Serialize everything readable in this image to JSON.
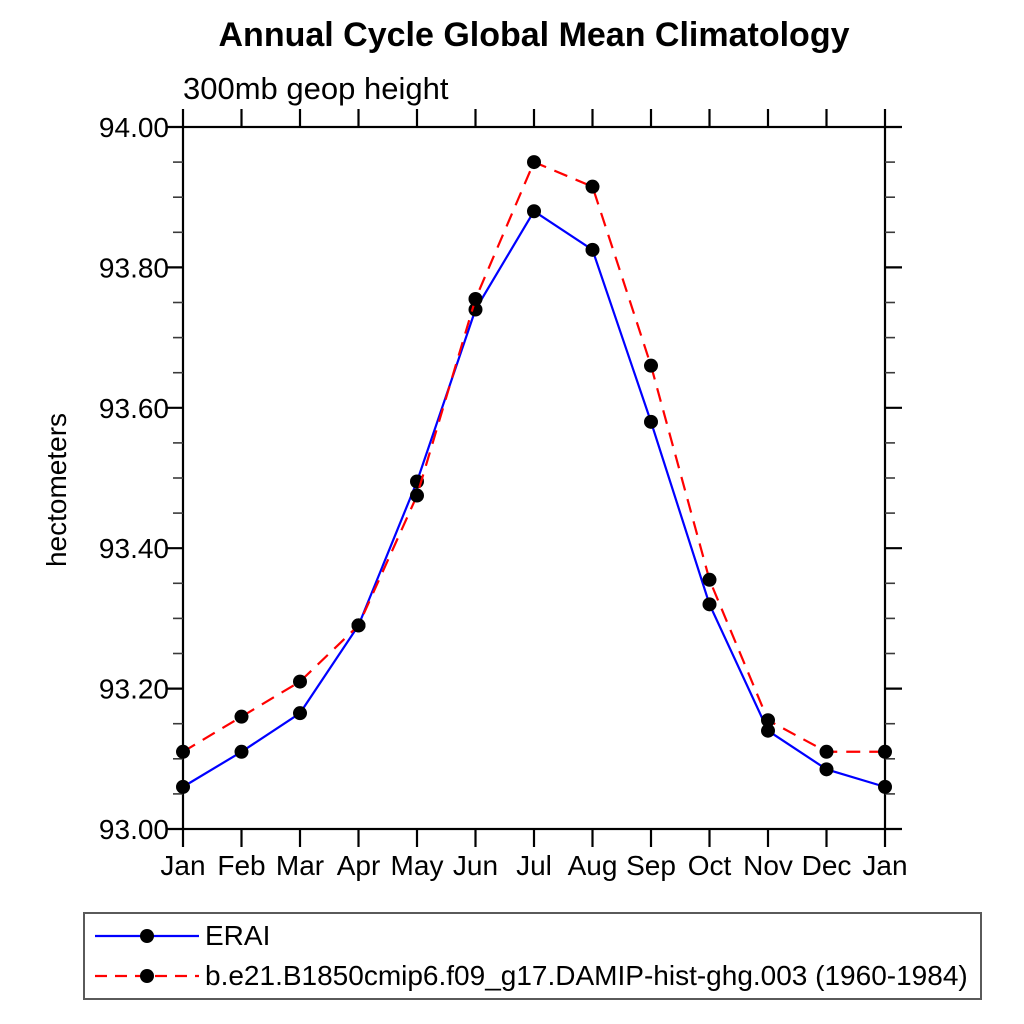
{
  "title": "Annual Cycle Global Mean Climatology",
  "subtitle": "300mb geop height",
  "ylabel": "hectometers",
  "colors": {
    "background": "#ffffff",
    "axis": "#000000",
    "marker": "#000000",
    "erai_line": "#0000ff",
    "model_line": "#ff0000",
    "legend_border": "#5a5a5a"
  },
  "legend": {
    "position": "bottom",
    "entries": [
      {
        "label": "ERAI",
        "color": "#0000ff",
        "style": "solid",
        "marker": "filled-circle"
      },
      {
        "label": "b.e21.B1850cmip6.f09_g17.DAMIP-hist-ghg.003 (1960-1984)",
        "color": "#ff0000",
        "style": "dashed",
        "marker": "filled-circle"
      }
    ]
  },
  "chart_data": {
    "type": "line",
    "title": "Annual Cycle Global Mean Climatology",
    "subtitle": "300mb geop height",
    "xlabel": "",
    "ylabel": "hectometers",
    "categories": [
      "Jan",
      "Feb",
      "Mar",
      "Apr",
      "May",
      "Jun",
      "Jul",
      "Aug",
      "Sep",
      "Oct",
      "Nov",
      "Dec",
      "Jan"
    ],
    "ylim": [
      93.0,
      94.0
    ],
    "ytick_labels": [
      "94.00",
      "93.80",
      "93.60",
      "93.40",
      "93.20",
      "93.00"
    ],
    "ytick_major_values": [
      94.0,
      93.8,
      93.6,
      93.4,
      93.2,
      93.0
    ],
    "ytick_minor_step": 0.05,
    "grid": false,
    "legend_position": "bottom",
    "series": [
      {
        "name": "ERAI",
        "color": "#0000ff",
        "line_style": "solid",
        "marker": "filled-circle",
        "values": [
          93.06,
          93.11,
          93.165,
          93.29,
          93.495,
          93.74,
          93.88,
          93.825,
          93.58,
          93.32,
          93.14,
          93.085,
          93.06
        ]
      },
      {
        "name": "b.e21.B1850cmip6.f09_g17.DAMIP-hist-ghg.003 (1960-1984)",
        "color": "#ff0000",
        "line_style": "dashed",
        "marker": "filled-circle",
        "values": [
          93.11,
          93.16,
          93.21,
          93.29,
          93.475,
          93.755,
          93.95,
          93.915,
          93.66,
          93.355,
          93.155,
          93.11,
          93.11
        ]
      }
    ]
  }
}
